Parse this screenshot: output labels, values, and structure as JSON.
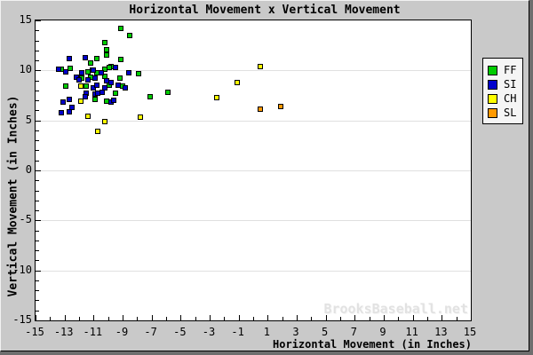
{
  "chart_data": {
    "type": "scatter",
    "title": "Horizontal Movement x Vertical Movement",
    "xlabel": "Horizontal Movement (in Inches)",
    "ylabel": "Vertical Movement (in Inches)",
    "watermark": "BrooksBaseball.net",
    "xlim": [
      -15,
      15
    ],
    "ylim": [
      -15,
      15
    ],
    "x_tick_labels": [
      -15,
      -13,
      -11,
      -9,
      -7,
      -5,
      -3,
      -1,
      1,
      3,
      5,
      7,
      9,
      11,
      13,
      15
    ],
    "y_tick_labels": [
      -15,
      -10,
      -5,
      0,
      5,
      10,
      15
    ],
    "minor_tick_step": 1,
    "grid": {
      "horizontal": true,
      "vertical": false,
      "color": "#e0e0e0"
    },
    "legend_position": "right",
    "legend_entries": [
      "FF",
      "SI",
      "CH",
      "SL"
    ],
    "series": [
      {
        "name": "FF",
        "color": "#00cc00",
        "points": [
          [
            -9.1,
            14.2
          ],
          [
            -8.5,
            13.5
          ],
          [
            -10.2,
            12.8
          ],
          [
            -10.1,
            12.1
          ],
          [
            -10.1,
            11.5
          ],
          [
            -10.8,
            11.2
          ],
          [
            -9.1,
            11.1
          ],
          [
            -11.2,
            10.7
          ],
          [
            -9.8,
            10.4
          ],
          [
            -12.6,
            10.2
          ],
          [
            -13.2,
            10.1
          ],
          [
            -10.2,
            10.1
          ],
          [
            -9.9,
            10.3
          ],
          [
            -11.4,
            9.9
          ],
          [
            -10.8,
            9.8
          ],
          [
            -7.9,
            9.7
          ],
          [
            -11.8,
            9.2
          ],
          [
            -11.2,
            9.3
          ],
          [
            -10.2,
            9.4
          ],
          [
            -9.2,
            9.2
          ],
          [
            -12.9,
            8.4
          ],
          [
            -11.5,
            8.4
          ],
          [
            -9.9,
            8.5
          ],
          [
            -9.0,
            8.4
          ],
          [
            -9.5,
            7.7
          ],
          [
            -10.9,
            7.1
          ],
          [
            -10.1,
            6.9
          ],
          [
            -7.1,
            7.4
          ],
          [
            -5.9,
            7.8
          ]
        ]
      },
      {
        "name": "SI",
        "color": "#0000cc",
        "points": [
          [
            -12.7,
            11.2
          ],
          [
            -11.6,
            11.3
          ],
          [
            -11.1,
            10.0
          ],
          [
            -13.4,
            10.1
          ],
          [
            -12.9,
            9.9
          ],
          [
            -11.8,
            9.8
          ],
          [
            -11.0,
            10.0
          ],
          [
            -10.5,
            9.8
          ],
          [
            -9.5,
            10.3
          ],
          [
            -8.6,
            9.8
          ],
          [
            -12.2,
            9.3
          ],
          [
            -12.0,
            9.1
          ],
          [
            -11.4,
            9.1
          ],
          [
            -10.9,
            9.2
          ],
          [
            -10.1,
            9.0
          ],
          [
            -9.8,
            8.8
          ],
          [
            -11.0,
            8.3
          ],
          [
            -10.8,
            8.5
          ],
          [
            -10.2,
            8.3
          ],
          [
            -9.3,
            8.5
          ],
          [
            -8.8,
            8.3
          ],
          [
            -11.5,
            7.7
          ],
          [
            -10.9,
            7.6
          ],
          [
            -10.4,
            7.8
          ],
          [
            -11.6,
            7.4
          ],
          [
            -10.7,
            7.7
          ],
          [
            -9.8,
            6.8
          ],
          [
            -9.6,
            7.0
          ],
          [
            -13.1,
            6.8
          ],
          [
            -12.7,
            7.1
          ],
          [
            -12.5,
            6.3
          ],
          [
            -13.2,
            5.8
          ],
          [
            -12.7,
            5.9
          ]
        ]
      },
      {
        "name": "CH",
        "color": "#ffff00",
        "points": [
          [
            -11.9,
            8.4
          ],
          [
            -11.9,
            6.9
          ],
          [
            -11.4,
            5.4
          ],
          [
            -10.2,
            4.9
          ],
          [
            -10.7,
            3.9
          ],
          [
            -7.8,
            5.3
          ],
          [
            -2.5,
            7.3
          ],
          [
            -1.1,
            8.8
          ],
          [
            0.5,
            10.4
          ]
        ]
      },
      {
        "name": "SL",
        "color": "#ff9900",
        "points": [
          [
            0.5,
            6.1
          ],
          [
            1.9,
            6.4
          ]
        ]
      }
    ]
  }
}
